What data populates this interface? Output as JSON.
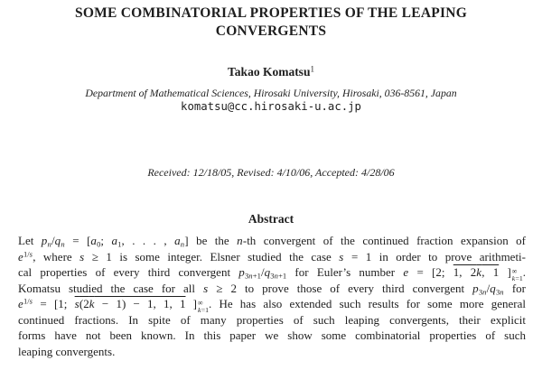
{
  "page": {
    "background_color": "#ffffff",
    "text_color": "#1e1e1e"
  },
  "title": "SOME COMBINATORIAL PROPERTIES OF THE LEAPING CONVERGENTS",
  "author": {
    "name": "Takao Komatsu",
    "footnote_mark": "1"
  },
  "affiliation": "Department of Mathematical Sciences, Hirosaki University, Hirosaki, 036-8561, Japan",
  "email": "komatsu@cc.hirosaki-u.ac.jp",
  "dates_line": "Received: 12/18/05, Revised: 4/10/06, Accepted: 4/28/06",
  "abstract": {
    "heading": "Abstract",
    "lines": [
      "Let <i>p</i><sub><i>n</i></sub>/<i>q</i><sub><i>n</i></sub> = [<i>a</i><sub>0</sub>; <i>a</i><sub>1</sub>, . . . , <i>a</i><sub><i>n</i></sub>] be the <i>n</i>-th convergent of the continued fraction expansion of",
      "<i>e</i><sup>1/<i>s</i></sup>, where <i>s</i> ≥ 1 is some integer.  Elsner studied the case <i>s</i> = 1 in order to prove arithmeti-",
      "cal properties of every third convergent <i>p</i><sub>3<i>n</i>+1</sub>/<i>q</i><sub>3<i>n</i>+1</sub> for Euler’s number <i>e</i> = [2; <span class='ol'>1, 2<i>k</i>, 1</span> ]<span class='ss'><span>∞</span><span><i>k</i>=1</span></span>.",
      "Komatsu studied the case for all <i>s</i> ≥ 2 to prove those of every third convergent <i>p</i><sub>3<i>n</i></sub>/<i>q</i><sub>3<i>n</i></sub> for",
      "<i>e</i><sup>1/<i>s</i></sup> = [1; <span class='ol'><i>s</i>(2<i>k</i> − 1) − 1, 1, 1</span> ]<span class='ss'><span>∞</span><span><i>k</i>=1</span></span>.  He has also extended such results for some more general",
      "continued fractions.  In spite of many properties of such leaping convergents, their explicit",
      "forms have not been known.  In this paper we show some combinatorial properties of such",
      "leaping convergents."
    ]
  }
}
